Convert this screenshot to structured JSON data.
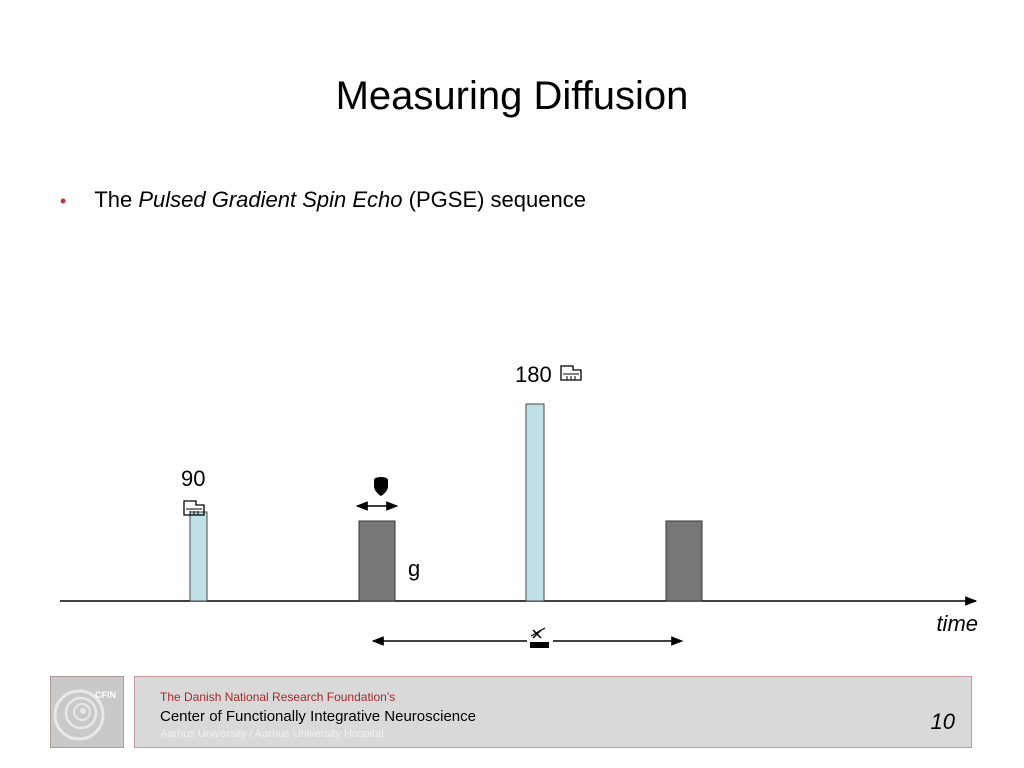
{
  "slide": {
    "title": "Measuring Diffusion",
    "bullet": {
      "prefix": "The",
      "emphasis": "Pulsed Gradient Spin Echo",
      "suffix": "(PGSE) sequence"
    }
  },
  "diagram": {
    "pulse_90_label": "90",
    "pulse_180_label": "180",
    "gradient_label": "g",
    "axis_label": "time"
  },
  "footer": {
    "foundation": "The Danish National Research Foundation’s",
    "center": "Center of Functionally Integrative Neuroscience",
    "affiliation": "Aarhus University / Aarhus University Hospital",
    "logo_text": "CFIN",
    "page_number": "10"
  },
  "colors": {
    "rf_pulse_fill": "#bfe0e6",
    "gradient_fill": "#777777",
    "bullet_dot": "#b23a3a",
    "footer_red": "#a52a2a"
  }
}
